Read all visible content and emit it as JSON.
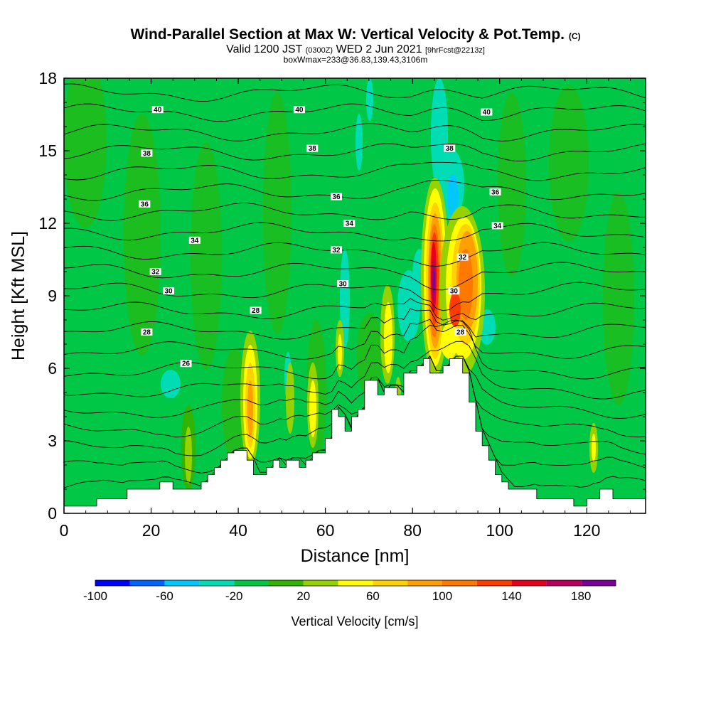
{
  "chart_data": {
    "type": "heatmap",
    "title": "Wind-Parallel Section at Max W: Vertical Velocity & Pot.Temp.",
    "title_mark": "(C)",
    "subtitle_main": "Valid 1200 JST",
    "subtitle_utc": "(0300Z)",
    "subtitle_date": "WED 2 Jun 2021",
    "subtitle_fcst": "[9hrFcst@2213z]",
    "subtitle2": "boxWmax=233@36.83,139.43,3106m",
    "xlabel": "Distance [nm]",
    "ylabel": "Height [Kft MSL]",
    "xlim": [
      0,
      133.5
    ],
    "ylim": [
      0,
      18
    ],
    "xticks": [
      0,
      20,
      40,
      60,
      80,
      100,
      120
    ],
    "yticks": [
      0,
      3,
      6,
      9,
      12,
      15,
      18
    ],
    "xtick_labels": [
      "0",
      "20",
      "40",
      "60",
      "80",
      "100",
      "120"
    ],
    "ytick_labels": [
      "0",
      "3",
      "6",
      "9",
      "12",
      "15",
      "18"
    ],
    "background_color": "#00c846",
    "terrain": [
      [
        0,
        0.3
      ],
      [
        7.5,
        0.3
      ],
      [
        7.5,
        0.6
      ],
      [
        14.5,
        0.6
      ],
      [
        14.5,
        1.0
      ],
      [
        22,
        1.0
      ],
      [
        22,
        1.3
      ],
      [
        25,
        1.3
      ],
      [
        25,
        1.0
      ],
      [
        31.5,
        1.0
      ],
      [
        31.5,
        1.3
      ],
      [
        33,
        1.3
      ],
      [
        33,
        1.6
      ],
      [
        34.5,
        1.6
      ],
      [
        34.5,
        1.9
      ],
      [
        36,
        1.9
      ],
      [
        36,
        2.2
      ],
      [
        37.5,
        2.2
      ],
      [
        37.5,
        2.5
      ],
      [
        39,
        2.5
      ],
      [
        39,
        2.6
      ],
      [
        42,
        2.6
      ],
      [
        42,
        2.2
      ],
      [
        43.5,
        2.2
      ],
      [
        43.5,
        1.6
      ],
      [
        46.5,
        1.6
      ],
      [
        46.5,
        1.9
      ],
      [
        48,
        1.9
      ],
      [
        48,
        2.2
      ],
      [
        49.5,
        2.2
      ],
      [
        49.5,
        1.9
      ],
      [
        51,
        1.9
      ],
      [
        51,
        2.2
      ],
      [
        54,
        2.2
      ],
      [
        54,
        1.9
      ],
      [
        55.5,
        1.9
      ],
      [
        55.5,
        2.2
      ],
      [
        57,
        2.2
      ],
      [
        57,
        2.5
      ],
      [
        60,
        2.5
      ],
      [
        60,
        3.1
      ],
      [
        61.5,
        3.1
      ],
      [
        61.5,
        4.3
      ],
      [
        63,
        4.3
      ],
      [
        63,
        4.0
      ],
      [
        64.5,
        4.0
      ],
      [
        64.5,
        3.4
      ],
      [
        66,
        3.4
      ],
      [
        66,
        4.0
      ],
      [
        67.5,
        4.0
      ],
      [
        67.5,
        4.3
      ],
      [
        69,
        4.3
      ],
      [
        69,
        5.5
      ],
      [
        72,
        5.5
      ],
      [
        72,
        4.9
      ],
      [
        73.5,
        4.9
      ],
      [
        73.5,
        5.2
      ],
      [
        76.5,
        5.2
      ],
      [
        76.5,
        4.9
      ],
      [
        78,
        4.9
      ],
      [
        78,
        5.8
      ],
      [
        81,
        5.8
      ],
      [
        81,
        6.1
      ],
      [
        82.5,
        6.1
      ],
      [
        82.5,
        6.4
      ],
      [
        84,
        6.4
      ],
      [
        84,
        5.8
      ],
      [
        85.5,
        5.8
      ],
      [
        85.5,
        5.8
      ],
      [
        87,
        5.8
      ],
      [
        87,
        6.1
      ],
      [
        88.5,
        6.1
      ],
      [
        88.5,
        6.4
      ],
      [
        91.5,
        6.4
      ],
      [
        91.5,
        5.8
      ],
      [
        93,
        5.8
      ],
      [
        93,
        4.6
      ],
      [
        94.5,
        4.6
      ],
      [
        94.5,
        3.4
      ],
      [
        96,
        3.4
      ],
      [
        96,
        2.8
      ],
      [
        97.5,
        2.8
      ],
      [
        97.5,
        2.2
      ],
      [
        99,
        2.2
      ],
      [
        99,
        1.6
      ],
      [
        100.5,
        1.6
      ],
      [
        100.5,
        1.3
      ],
      [
        102,
        1.3
      ],
      [
        102,
        1.0
      ],
      [
        108.5,
        1.0
      ],
      [
        108.5,
        0.6
      ],
      [
        117,
        0.6
      ],
      [
        117,
        0.3
      ],
      [
        120,
        0.3
      ],
      [
        120,
        0.6
      ],
      [
        123,
        0.6
      ],
      [
        123,
        1.0
      ],
      [
        126,
        1.0
      ],
      [
        126,
        0.6
      ],
      [
        133.5,
        0.6
      ]
    ],
    "colorbar": {
      "label": "Vertical Velocity [cm/s]",
      "tick_labels": [
        "-100",
        "-60",
        "-20",
        "20",
        "60",
        "100",
        "140",
        "180"
      ],
      "colors": [
        "#0000ff",
        "#0064ff",
        "#00c8ff",
        "#00dcb4",
        "#00c846",
        "#32b400",
        "#96d200",
        "#ffff00",
        "#ffd200",
        "#ffa000",
        "#ff7800",
        "#ff3c00",
        "#e6001e",
        "#b4005a",
        "#780096"
      ]
    },
    "contour_labels": [
      {
        "x": 21.5,
        "y": 16.7,
        "text": "40"
      },
      {
        "x": 54,
        "y": 16.7,
        "text": "40"
      },
      {
        "x": 97,
        "y": 16.6,
        "text": "40"
      },
      {
        "x": 19,
        "y": 14.9,
        "text": "38"
      },
      {
        "x": 57,
        "y": 15.1,
        "text": "38"
      },
      {
        "x": 88.5,
        "y": 15.1,
        "text": "38"
      },
      {
        "x": 18.5,
        "y": 12.8,
        "text": "36"
      },
      {
        "x": 62.5,
        "y": 13.1,
        "text": "36"
      },
      {
        "x": 99,
        "y": 13.3,
        "text": "36"
      },
      {
        "x": 30,
        "y": 11.3,
        "text": "34"
      },
      {
        "x": 65.5,
        "y": 12.0,
        "text": "34"
      },
      {
        "x": 99.5,
        "y": 11.9,
        "text": "34"
      },
      {
        "x": 21,
        "y": 10.0,
        "text": "32"
      },
      {
        "x": 62.5,
        "y": 10.9,
        "text": "32"
      },
      {
        "x": 91.5,
        "y": 10.6,
        "text": "32"
      },
      {
        "x": 24,
        "y": 9.2,
        "text": "30"
      },
      {
        "x": 64,
        "y": 9.5,
        "text": "30"
      },
      {
        "x": 89.5,
        "y": 9.2,
        "text": "30"
      },
      {
        "x": 44,
        "y": 8.4,
        "text": "28"
      },
      {
        "x": 19,
        "y": 7.5,
        "text": "28"
      },
      {
        "x": 91,
        "y": 7.5,
        "text": "28"
      },
      {
        "x": 28,
        "y": 6.2,
        "text": "26"
      }
    ]
  }
}
